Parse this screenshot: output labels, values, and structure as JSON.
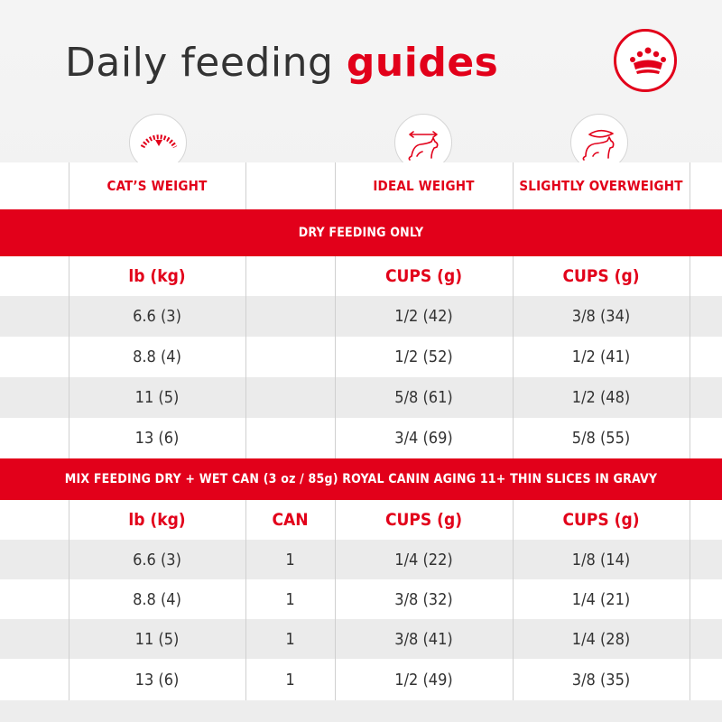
{
  "header": {
    "title_prefix": "Daily feeding",
    "title_accent": "guides"
  },
  "columns": {
    "weight": "CAT’S WEIGHT",
    "ideal": "IDEAL WEIGHT",
    "overweight": "SLIGHTLY OVERWEIGHT"
  },
  "dry": {
    "banner": "DRY FEEDING ONLY",
    "units": {
      "weight": "lb (kg)",
      "ideal": "CUPS (g)",
      "overweight": "CUPS (g)"
    },
    "rows": [
      {
        "weight": "6.6 (3)",
        "ideal": "1/2 (42)",
        "overweight": "3/8 (34)"
      },
      {
        "weight": "8.8 (4)",
        "ideal": "1/2 (52)",
        "overweight": "1/2 (41)"
      },
      {
        "weight": "11 (5)",
        "ideal": "5/8 (61)",
        "overweight": "1/2 (48)"
      },
      {
        "weight": "13 (6)",
        "ideal": "3/4 (69)",
        "overweight": "5/8 (55)"
      }
    ]
  },
  "mix": {
    "banner": "MIX FEEDING DRY + WET CAN (3 oz / 85g) ROYAL CANIN AGING 11+ THIN SLICES IN GRAVY",
    "units": {
      "weight": "lb (kg)",
      "can": "CAN",
      "ideal": "CUPS (g)",
      "overweight": "CUPS (g)"
    },
    "rows": [
      {
        "weight": "6.6 (3)",
        "can": "1",
        "ideal": "1/4 (22)",
        "overweight": "1/8 (14)"
      },
      {
        "weight": "8.8 (4)",
        "can": "1",
        "ideal": "3/8 (32)",
        "overweight": "1/4 (21)"
      },
      {
        "weight": "11 (5)",
        "can": "1",
        "ideal": "3/8 (41)",
        "overweight": "1/4 (28)"
      },
      {
        "weight": "13 (6)",
        "can": "1",
        "ideal": "1/2 (49)",
        "overweight": "3/8 (35)"
      }
    ]
  },
  "icons": {
    "logo": "crown-logo-icon",
    "weight": "scale-icon",
    "ideal": "ideal-weight-cat-icon",
    "overweight": "overweight-cat-icon"
  },
  "colors": {
    "accent": "#e2001a",
    "text": "#333333",
    "row_alt": "#ebebeb"
  }
}
